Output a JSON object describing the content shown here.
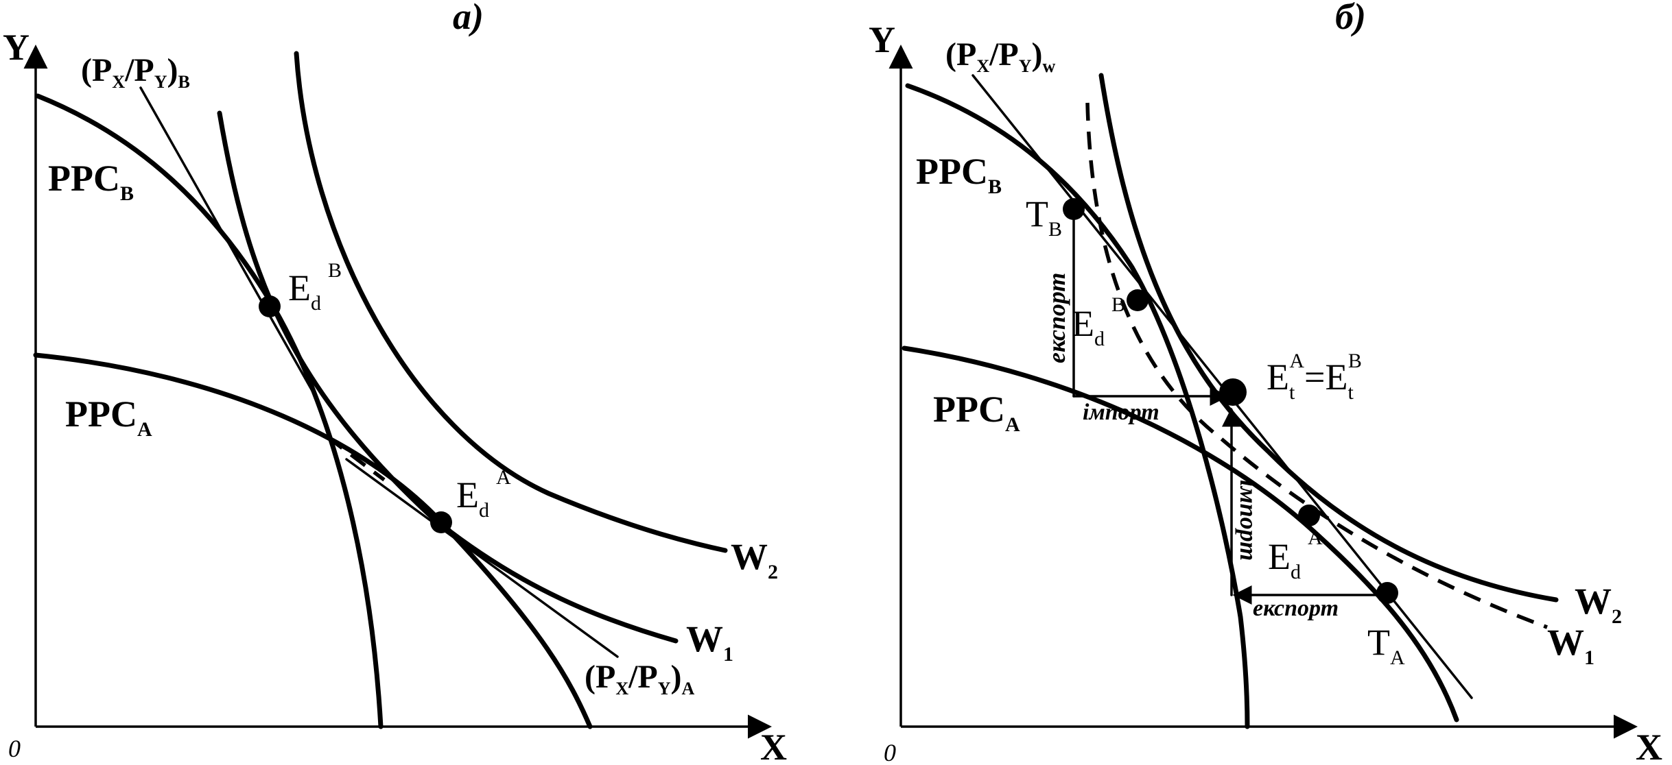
{
  "panel_a": {
    "title": "а)",
    "y_axis": "Y",
    "x_axis": "X",
    "origin": "0",
    "ppc_b": {
      "main": "PPC",
      "sub": "B"
    },
    "ppc_a": {
      "main": "PPC",
      "sub": "A"
    },
    "price_b": {
      "open": "(P",
      "sub_x": "X",
      "mid": "/P",
      "sub_y": "Y",
      "close": ")",
      "sub_end": "B"
    },
    "price_a": {
      "open": "(P",
      "sub_x": "X",
      "mid": "/P",
      "sub_y": "Y",
      "close": ")",
      "sub_end": "A"
    },
    "ed_b": {
      "main": "E",
      "sub": "d",
      "sup": "B"
    },
    "ed_a": {
      "main": "E",
      "sub": "d",
      "sup": "A"
    },
    "w2": {
      "main": "W",
      "sub": "2"
    },
    "w1": {
      "main": "W",
      "sub": "1"
    }
  },
  "panel_b": {
    "title": "б)",
    "y_axis": "Y",
    "x_axis": "X",
    "origin": "0",
    "ppc_b": {
      "main": "PPC",
      "sub": "B"
    },
    "ppc_a": {
      "main": "PPC",
      "sub": "A"
    },
    "price_w": {
      "open": "(P",
      "sub_x": "X",
      "mid": "/P",
      "sub_y": "Y",
      "close": ")",
      "sub_end": "w"
    },
    "tb": {
      "main": "T",
      "sub": "B"
    },
    "ta": {
      "main": "T",
      "sub": "A"
    },
    "ed_b": {
      "main": "E",
      "sub": "d",
      "sup": "B"
    },
    "ed_a": {
      "main": "E",
      "sub": "d",
      "sup": "A"
    },
    "et": {
      "main1": "E",
      "sub1": "t",
      "sup1": "A",
      "eq": "=",
      "main2": "E",
      "sub2": "t",
      "sup2": "B"
    },
    "export_b": "експорт",
    "import_b": "імпорт",
    "import_a": "імпорт",
    "export_a": "експорт",
    "w2": {
      "main": "W",
      "sub": "2"
    },
    "w1": {
      "main": "W",
      "sub": "1"
    }
  }
}
